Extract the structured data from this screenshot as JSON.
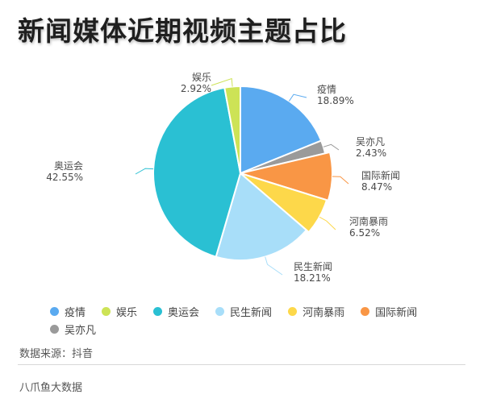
{
  "chart_data": {
    "type": "pie",
    "title": "新闻媒体近期视频主题占比",
    "slices": [
      {
        "label": "疫情",
        "value": 18.89,
        "display": "18.89%",
        "color": "#5aaaf0"
      },
      {
        "label": "吴亦凡",
        "value": 2.43,
        "display": "2.43%",
        "color": "#9a9a9a"
      },
      {
        "label": "国际新闻",
        "value": 8.47,
        "display": "8.47%",
        "color": "#f99645"
      },
      {
        "label": "河南暴雨",
        "value": 6.52,
        "display": "6.52%",
        "color": "#fdd84a"
      },
      {
        "label": "民生新闻",
        "value": 18.21,
        "display": "18.21%",
        "color": "#a8def9"
      },
      {
        "label": "奥运会",
        "value": 42.55,
        "display": "42.55%",
        "color": "#2ac0d3"
      },
      {
        "label": "娱乐",
        "value": 2.92,
        "display": "2.92%",
        "color": "#cde356"
      }
    ],
    "legend_order": [
      "疫情",
      "娱乐",
      "奥运会",
      "民生新闻",
      "河南暴雨",
      "国际新闻",
      "吴亦凡"
    ],
    "legend_position": "bottom"
  },
  "footer": {
    "source": "数据来源：抖音",
    "brand": "八爪鱼大数据"
  }
}
